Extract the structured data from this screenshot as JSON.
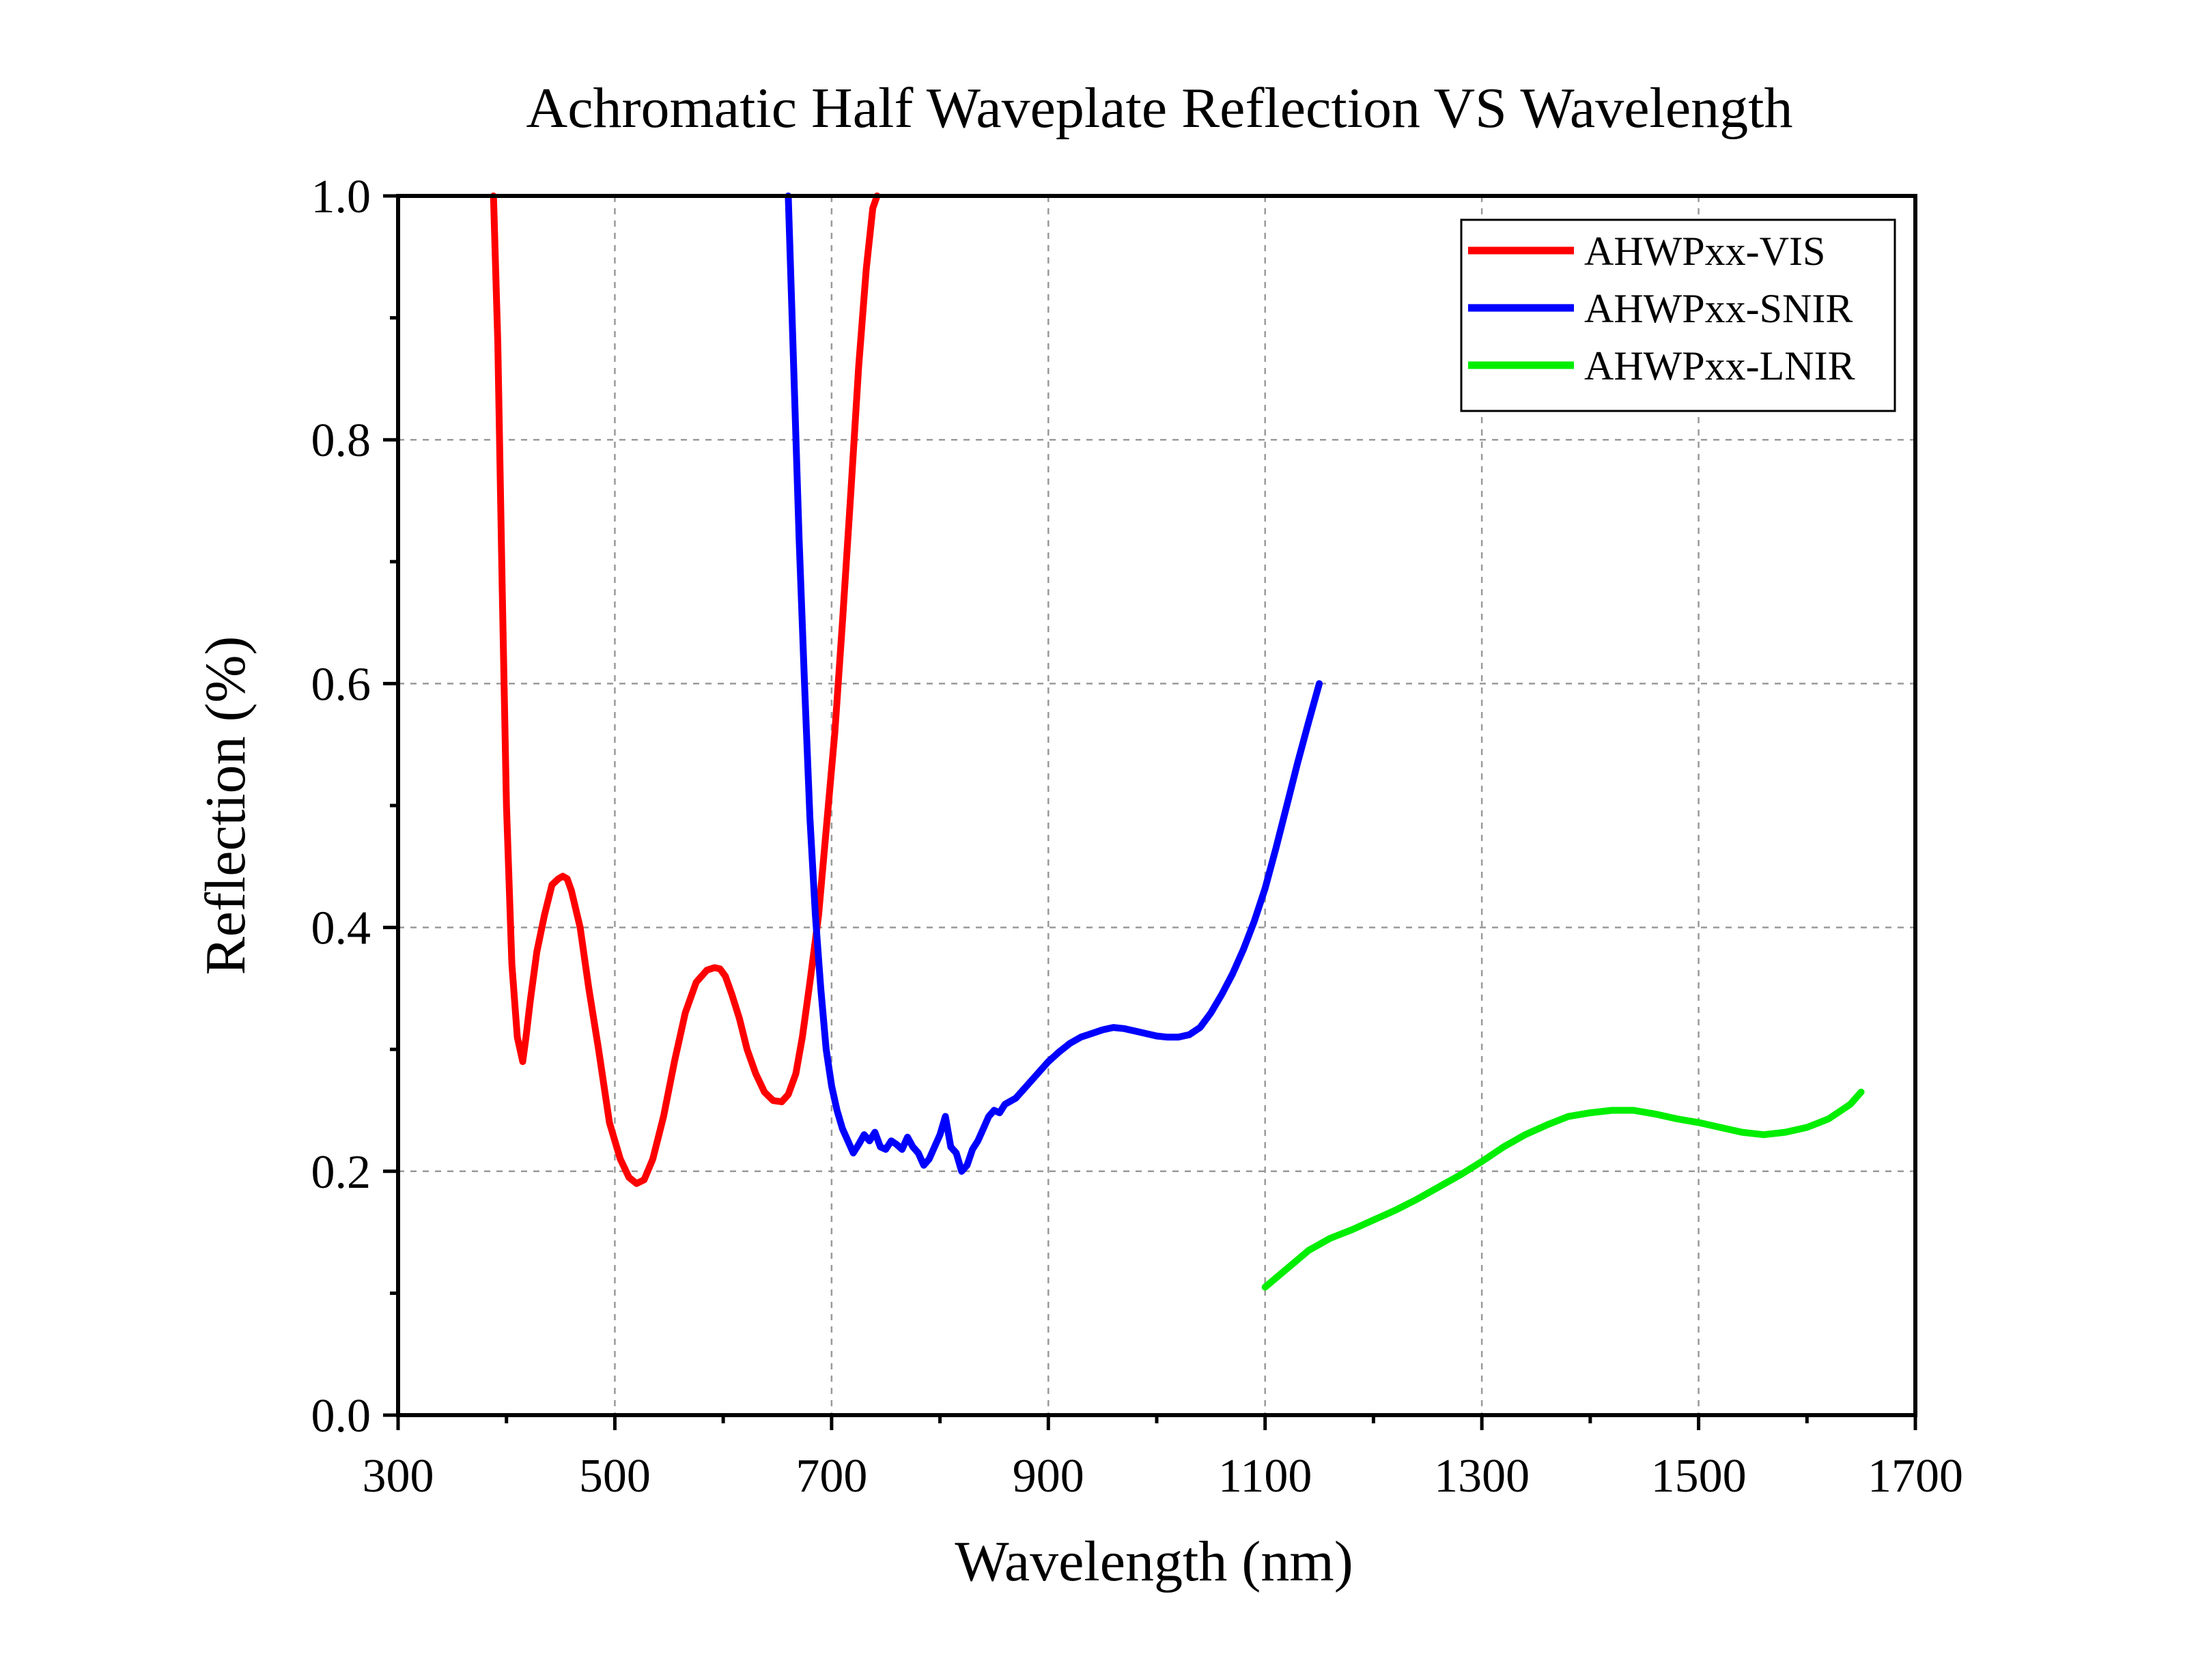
{
  "chart_data": {
    "type": "line",
    "title": "Achromatic Half Waveplate Reflection VS Wavelength",
    "xlabel": "Wavelength (nm)",
    "ylabel": "Reflection (%)",
    "xlim": [
      300,
      1700
    ],
    "ylim": [
      0.0,
      1.0
    ],
    "x_ticks": [
      "300",
      "500",
      "700",
      "900",
      "1100",
      "1300",
      "1500",
      "1700"
    ],
    "y_ticks": [
      "0.0",
      "0.2",
      "0.4",
      "0.6",
      "0.8",
      "1.0"
    ],
    "grid": true,
    "legend_position": "top-right",
    "series": [
      {
        "name": "AHWPxx-VIS",
        "color": "#ff0000",
        "x": [
          388,
          392,
          396,
          400,
          405,
          410,
          415,
          418,
          422,
          428,
          435,
          442,
          448,
          452,
          456,
          460,
          468,
          476,
          485,
          495,
          505,
          513,
          520,
          527,
          535,
          545,
          555,
          565,
          575,
          585,
          592,
          597,
          602,
          608,
          615,
          622,
          630,
          638,
          646,
          654,
          660,
          667,
          673,
          680,
          688,
          695,
          703,
          710,
          718,
          725,
          732,
          738,
          742
        ],
        "y": [
          1.0,
          0.88,
          0.68,
          0.5,
          0.37,
          0.31,
          0.29,
          0.31,
          0.34,
          0.38,
          0.41,
          0.435,
          0.44,
          0.442,
          0.44,
          0.43,
          0.4,
          0.35,
          0.3,
          0.24,
          0.21,
          0.195,
          0.19,
          0.193,
          0.21,
          0.245,
          0.29,
          0.33,
          0.355,
          0.365,
          0.367,
          0.366,
          0.36,
          0.345,
          0.325,
          0.3,
          0.28,
          0.265,
          0.258,
          0.257,
          0.263,
          0.28,
          0.31,
          0.355,
          0.41,
          0.48,
          0.56,
          0.65,
          0.76,
          0.86,
          0.94,
          0.99,
          1.0
        ]
      },
      {
        "name": "AHWPxx-SNIR",
        "color": "#0000ff",
        "x": [
          660,
          665,
          670,
          675,
          680,
          685,
          690,
          695,
          700,
          705,
          710,
          715,
          720,
          725,
          730,
          735,
          740,
          745,
          750,
          755,
          760,
          765,
          770,
          775,
          780,
          785,
          790,
          795,
          800,
          805,
          810,
          815,
          820,
          825,
          830,
          835,
          840,
          845,
          850,
          855,
          860,
          870,
          880,
          890,
          900,
          910,
          920,
          930,
          940,
          950,
          960,
          970,
          980,
          990,
          1000,
          1010,
          1020,
          1030,
          1040,
          1050,
          1060,
          1070,
          1080,
          1090,
          1100,
          1110,
          1120,
          1130,
          1140,
          1150
        ],
        "y": [
          1.0,
          0.86,
          0.72,
          0.6,
          0.49,
          0.41,
          0.35,
          0.3,
          0.27,
          0.25,
          0.235,
          0.225,
          0.215,
          0.222,
          0.23,
          0.225,
          0.232,
          0.22,
          0.218,
          0.225,
          0.222,
          0.218,
          0.228,
          0.22,
          0.215,
          0.205,
          0.21,
          0.22,
          0.23,
          0.245,
          0.22,
          0.215,
          0.2,
          0.205,
          0.218,
          0.225,
          0.235,
          0.245,
          0.25,
          0.248,
          0.255,
          0.26,
          0.27,
          0.28,
          0.29,
          0.298,
          0.305,
          0.31,
          0.313,
          0.316,
          0.318,
          0.317,
          0.315,
          0.313,
          0.311,
          0.31,
          0.31,
          0.312,
          0.318,
          0.33,
          0.345,
          0.362,
          0.382,
          0.405,
          0.432,
          0.465,
          0.5,
          0.535,
          0.568,
          0.6
        ]
      },
      {
        "name": "AHWPxx-LNIR",
        "color": "#00ee00",
        "x": [
          1100,
          1120,
          1140,
          1160,
          1180,
          1200,
          1220,
          1240,
          1260,
          1280,
          1300,
          1320,
          1340,
          1360,
          1380,
          1400,
          1420,
          1440,
          1460,
          1480,
          1500,
          1520,
          1540,
          1560,
          1580,
          1600,
          1620,
          1640,
          1650
        ],
        "y": [
          0.105,
          0.12,
          0.135,
          0.145,
          0.152,
          0.16,
          0.168,
          0.177,
          0.187,
          0.197,
          0.208,
          0.22,
          0.23,
          0.238,
          0.245,
          0.248,
          0.25,
          0.25,
          0.247,
          0.243,
          0.24,
          0.236,
          0.232,
          0.23,
          0.232,
          0.236,
          0.243,
          0.255,
          0.265
        ]
      }
    ]
  }
}
